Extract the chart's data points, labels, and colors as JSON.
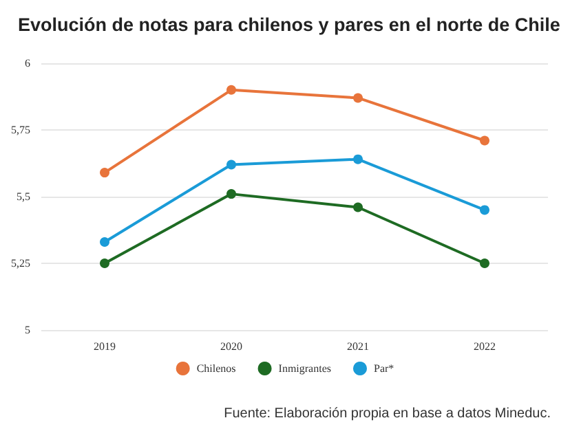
{
  "chart_data": {
    "type": "line",
    "title": "Evolución de notas para chilenos y pares en el norte de Chile",
    "categories": [
      "2019",
      "2020",
      "2021",
      "2022"
    ],
    "series": [
      {
        "name": "Chilenos",
        "color": "#e8743b",
        "values": [
          5.59,
          5.9,
          5.87,
          5.71
        ]
      },
      {
        "name": "Inmigrantes",
        "color": "#1e6b23",
        "values": [
          5.25,
          5.51,
          5.46,
          5.25
        ]
      },
      {
        "name": "Par*",
        "color": "#1a9bd7",
        "values": [
          5.33,
          5.62,
          5.64,
          5.45
        ]
      }
    ],
    "ylim": [
      5,
      6
    ],
    "yticks": [
      5,
      {
        "value": 5.25,
        "label": "5,25"
      },
      {
        "value": 5.5,
        "label": "5,5"
      },
      {
        "value": 5.75,
        "label": "5,75"
      },
      6
    ],
    "grid": "y",
    "legend": "bottom",
    "marker": "circle",
    "line_style": "solid",
    "annotations": [
      "Fuente: Elaboración propia en base a datos Mineduc."
    ]
  }
}
